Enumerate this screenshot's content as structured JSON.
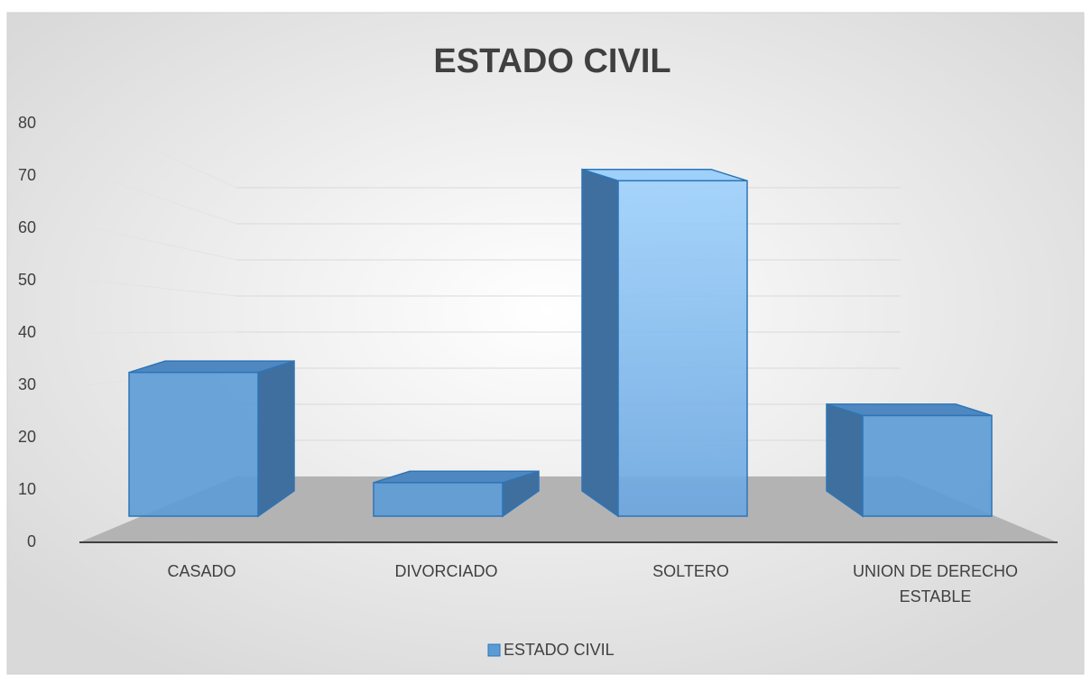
{
  "chart_data": {
    "type": "bar3d",
    "title": "ESTADO CIVIL",
    "categories": [
      "CASADO",
      "DIVORCIADO",
      "SOLTERO",
      [
        "UNION DE DERECHO",
        "ESTABLE"
      ]
    ],
    "series": [
      {
        "name": "ESTADO CIVIL",
        "color": "#5b9bd5",
        "values": [
          30,
          7,
          70,
          21
        ]
      }
    ],
    "ylim": [
      0,
      80
    ],
    "yticks": [
      0,
      10,
      20,
      30,
      40,
      50,
      60,
      70,
      80
    ],
    "grid": true,
    "legend": "bottom"
  }
}
